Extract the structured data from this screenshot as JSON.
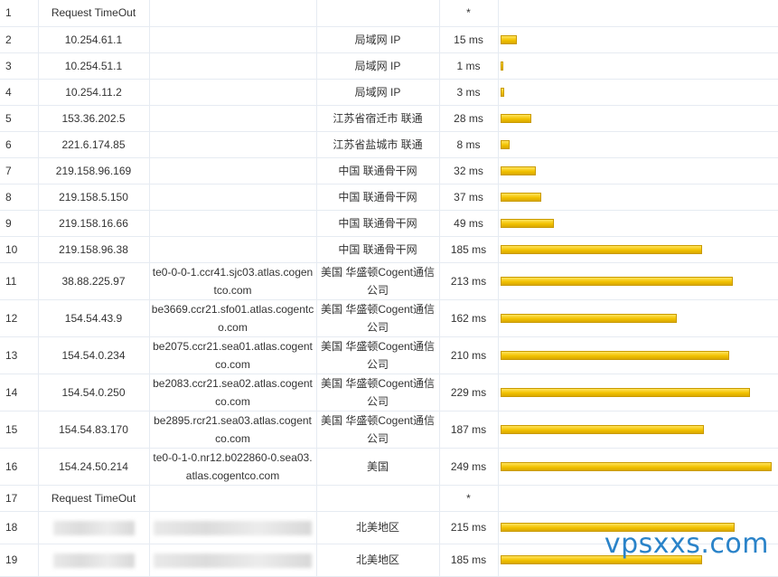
{
  "table": {
    "rows": [
      {
        "hop": "1",
        "ip": "Request TimeOut",
        "host": "",
        "location": "",
        "latency": "*",
        "latency_ms": 0
      },
      {
        "hop": "2",
        "ip": "10.254.61.1",
        "host": "",
        "location": "局域网 IP",
        "latency": "15 ms",
        "latency_ms": 15
      },
      {
        "hop": "3",
        "ip": "10.254.51.1",
        "host": "",
        "location": "局域网 IP",
        "latency": "1 ms",
        "latency_ms": 1
      },
      {
        "hop": "4",
        "ip": "10.254.11.2",
        "host": "",
        "location": "局域网 IP",
        "latency": "3 ms",
        "latency_ms": 3
      },
      {
        "hop": "5",
        "ip": "153.36.202.5",
        "host": "",
        "location": "江苏省宿迁市 联通",
        "latency": "28 ms",
        "latency_ms": 28
      },
      {
        "hop": "6",
        "ip": "221.6.174.85",
        "host": "",
        "location": "江苏省盐城市 联通",
        "latency": "8 ms",
        "latency_ms": 8
      },
      {
        "hop": "7",
        "ip": "219.158.96.169",
        "host": "",
        "location": "中国 联通骨干网",
        "latency": "32 ms",
        "latency_ms": 32
      },
      {
        "hop": "8",
        "ip": "219.158.5.150",
        "host": "",
        "location": "中国 联通骨干网",
        "latency": "37 ms",
        "latency_ms": 37
      },
      {
        "hop": "9",
        "ip": "219.158.16.66",
        "host": "",
        "location": "中国 联通骨干网",
        "latency": "49 ms",
        "latency_ms": 49
      },
      {
        "hop": "10",
        "ip": "219.158.96.38",
        "host": "",
        "location": "中国 联通骨干网",
        "latency": "185 ms",
        "latency_ms": 185
      },
      {
        "hop": "11",
        "ip": "38.88.225.97",
        "host": "te0-0-0-1.ccr41.sjc03.atlas.cogentco.com",
        "location": "美国 华盛顿Cogent通信公司",
        "latency": "213 ms",
        "latency_ms": 213
      },
      {
        "hop": "12",
        "ip": "154.54.43.9",
        "host": "be3669.ccr21.sfo01.atlas.cogentco.com",
        "location": "美国 华盛顿Cogent通信公司",
        "latency": "162 ms",
        "latency_ms": 162
      },
      {
        "hop": "13",
        "ip": "154.54.0.234",
        "host": "be2075.ccr21.sea01.atlas.cogentco.com",
        "location": "美国 华盛顿Cogent通信公司",
        "latency": "210 ms",
        "latency_ms": 210
      },
      {
        "hop": "14",
        "ip": "154.54.0.250",
        "host": "be2083.ccr21.sea02.atlas.cogentco.com",
        "location": "美国 华盛顿Cogent通信公司",
        "latency": "229 ms",
        "latency_ms": 229
      },
      {
        "hop": "15",
        "ip": "154.54.83.170",
        "host": "be2895.rcr21.sea03.atlas.cogentco.com",
        "location": "美国 华盛顿Cogent通信公司",
        "latency": "187 ms",
        "latency_ms": 187
      },
      {
        "hop": "16",
        "ip": "154.24.50.214",
        "host": "te0-0-1-0.nr12.b022860-0.sea03.atlas.cogentco.com",
        "location": "美国",
        "latency": "249 ms",
        "latency_ms": 249
      },
      {
        "hop": "17",
        "ip": "Request TimeOut",
        "host": "",
        "location": "",
        "latency": "*",
        "latency_ms": 0
      },
      {
        "hop": "18",
        "ip": "",
        "host": "",
        "location": "北美地区",
        "latency": "215 ms",
        "latency_ms": 215,
        "redacted": true
      },
      {
        "hop": "19",
        "ip": "",
        "host": "",
        "location": "北美地区",
        "latency": "185 ms",
        "latency_ms": 185,
        "redacted": true
      }
    ],
    "max_latency_ms": 249,
    "bar_color": "#f2c200"
  },
  "watermark": "vpsxxs.com",
  "watermark_color": "#2a83c9"
}
